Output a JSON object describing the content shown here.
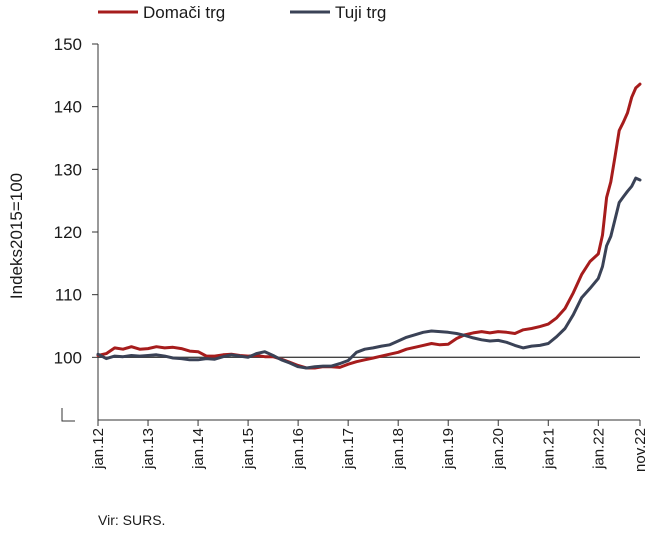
{
  "chart_data": {
    "type": "line",
    "ylabel": "Indeks2015=100",
    "ylim": [
      90,
      150
    ],
    "yticks": [
      100,
      110,
      120,
      130,
      140,
      150
    ],
    "xlim": [
      "2012-01",
      "2022-11"
    ],
    "xtick_labels": [
      "jan.12",
      "jan.13",
      "jan.14",
      "jan.15",
      "jan.16",
      "jan.17",
      "jan.18",
      "jan.19",
      "jan.20",
      "jan.21",
      "jan.22",
      "nov.22"
    ],
    "xtick_dates": [
      "2012-01",
      "2013-01",
      "2014-01",
      "2015-01",
      "2016-01",
      "2017-01",
      "2018-01",
      "2019-01",
      "2020-01",
      "2021-01",
      "2022-01",
      "2022-11"
    ],
    "reference_line": 100,
    "axis_break": true,
    "legend_position": "top-left",
    "series": [
      {
        "name": "Domači trg",
        "color": "#a61c1c",
        "points": [
          [
            "2012-01",
            100.3
          ],
          [
            "2012-03",
            100.6
          ],
          [
            "2012-05",
            101.5
          ],
          [
            "2012-07",
            101.3
          ],
          [
            "2012-09",
            101.7
          ],
          [
            "2012-11",
            101.3
          ],
          [
            "2013-01",
            101.4
          ],
          [
            "2013-03",
            101.7
          ],
          [
            "2013-05",
            101.5
          ],
          [
            "2013-07",
            101.6
          ],
          [
            "2013-09",
            101.4
          ],
          [
            "2013-11",
            101.0
          ],
          [
            "2014-01",
            100.9
          ],
          [
            "2014-03",
            100.2
          ],
          [
            "2014-05",
            100.2
          ],
          [
            "2014-07",
            100.4
          ],
          [
            "2014-09",
            100.5
          ],
          [
            "2014-11",
            100.3
          ],
          [
            "2015-01",
            100.2
          ],
          [
            "2015-03",
            100.3
          ],
          [
            "2015-05",
            100.1
          ],
          [
            "2015-07",
            100.1
          ],
          [
            "2015-09",
            99.7
          ],
          [
            "2015-11",
            99.2
          ],
          [
            "2016-01",
            98.7
          ],
          [
            "2016-03",
            98.3
          ],
          [
            "2016-05",
            98.3
          ],
          [
            "2016-07",
            98.5
          ],
          [
            "2016-09",
            98.5
          ],
          [
            "2016-11",
            98.4
          ],
          [
            "2017-01",
            98.9
          ],
          [
            "2017-03",
            99.3
          ],
          [
            "2017-05",
            99.6
          ],
          [
            "2017-07",
            99.9
          ],
          [
            "2017-09",
            100.2
          ],
          [
            "2017-11",
            100.5
          ],
          [
            "2018-01",
            100.8
          ],
          [
            "2018-03",
            101.3
          ],
          [
            "2018-05",
            101.6
          ],
          [
            "2018-07",
            101.9
          ],
          [
            "2018-09",
            102.2
          ],
          [
            "2018-11",
            102.0
          ],
          [
            "2019-01",
            102.1
          ],
          [
            "2019-03",
            103.0
          ],
          [
            "2019-05",
            103.6
          ],
          [
            "2019-07",
            103.9
          ],
          [
            "2019-09",
            104.1
          ],
          [
            "2019-11",
            103.9
          ],
          [
            "2020-01",
            104.1
          ],
          [
            "2020-03",
            104.0
          ],
          [
            "2020-05",
            103.8
          ],
          [
            "2020-07",
            104.4
          ],
          [
            "2020-09",
            104.6
          ],
          [
            "2020-11",
            104.9
          ],
          [
            "2021-01",
            105.3
          ],
          [
            "2021-03",
            106.3
          ],
          [
            "2021-05",
            107.8
          ],
          [
            "2021-07",
            110.3
          ],
          [
            "2021-09",
            113.2
          ],
          [
            "2021-11",
            115.3
          ],
          [
            "2022-01",
            116.5
          ],
          [
            "2022-02",
            119.5
          ],
          [
            "2022-03",
            125.5
          ],
          [
            "2022-04",
            128.0
          ],
          [
            "2022-05",
            132.0
          ],
          [
            "2022-06",
            136.2
          ],
          [
            "2022-07",
            137.5
          ],
          [
            "2022-08",
            139.0
          ],
          [
            "2022-09",
            141.5
          ],
          [
            "2022-10",
            143.0
          ],
          [
            "2022-11",
            143.6
          ]
        ]
      },
      {
        "name": "Tuji trg",
        "color": "#3a4256",
        "points": [
          [
            "2012-01",
            100.5
          ],
          [
            "2012-03",
            99.8
          ],
          [
            "2012-05",
            100.2
          ],
          [
            "2012-07",
            100.1
          ],
          [
            "2012-09",
            100.3
          ],
          [
            "2012-11",
            100.2
          ],
          [
            "2013-01",
            100.3
          ],
          [
            "2013-03",
            100.4
          ],
          [
            "2013-05",
            100.2
          ],
          [
            "2013-07",
            99.9
          ],
          [
            "2013-09",
            99.8
          ],
          [
            "2013-11",
            99.6
          ],
          [
            "2014-01",
            99.6
          ],
          [
            "2014-03",
            99.8
          ],
          [
            "2014-05",
            99.7
          ],
          [
            "2014-07",
            100.1
          ],
          [
            "2014-09",
            100.4
          ],
          [
            "2014-11",
            100.2
          ],
          [
            "2015-01",
            100.0
          ],
          [
            "2015-03",
            100.6
          ],
          [
            "2015-05",
            100.9
          ],
          [
            "2015-07",
            100.3
          ],
          [
            "2015-09",
            99.6
          ],
          [
            "2015-11",
            99.1
          ],
          [
            "2016-01",
            98.5
          ],
          [
            "2016-03",
            98.3
          ],
          [
            "2016-05",
            98.5
          ],
          [
            "2016-07",
            98.6
          ],
          [
            "2016-09",
            98.6
          ],
          [
            "2016-11",
            99.0
          ],
          [
            "2017-01",
            99.5
          ],
          [
            "2017-03",
            100.8
          ],
          [
            "2017-05",
            101.3
          ],
          [
            "2017-07",
            101.5
          ],
          [
            "2017-09",
            101.8
          ],
          [
            "2017-11",
            102.0
          ],
          [
            "2018-01",
            102.6
          ],
          [
            "2018-03",
            103.2
          ],
          [
            "2018-05",
            103.6
          ],
          [
            "2018-07",
            104.0
          ],
          [
            "2018-09",
            104.2
          ],
          [
            "2018-11",
            104.1
          ],
          [
            "2019-01",
            104.0
          ],
          [
            "2019-03",
            103.8
          ],
          [
            "2019-05",
            103.5
          ],
          [
            "2019-07",
            103.1
          ],
          [
            "2019-09",
            102.8
          ],
          [
            "2019-11",
            102.6
          ],
          [
            "2020-01",
            102.7
          ],
          [
            "2020-03",
            102.4
          ],
          [
            "2020-05",
            101.9
          ],
          [
            "2020-07",
            101.5
          ],
          [
            "2020-09",
            101.8
          ],
          [
            "2020-11",
            101.9
          ],
          [
            "2021-01",
            102.2
          ],
          [
            "2021-03",
            103.3
          ],
          [
            "2021-05",
            104.6
          ],
          [
            "2021-07",
            106.8
          ],
          [
            "2021-09",
            109.5
          ],
          [
            "2021-11",
            111.0
          ],
          [
            "2022-01",
            112.6
          ],
          [
            "2022-02",
            114.5
          ],
          [
            "2022-03",
            117.8
          ],
          [
            "2022-04",
            119.3
          ],
          [
            "2022-05",
            122.0
          ],
          [
            "2022-06",
            124.7
          ],
          [
            "2022-07",
            125.6
          ],
          [
            "2022-08",
            126.5
          ],
          [
            "2022-09",
            127.3
          ],
          [
            "2022-10",
            128.6
          ],
          [
            "2022-11",
            128.3
          ]
        ]
      }
    ]
  },
  "source": "Vir: SURS."
}
